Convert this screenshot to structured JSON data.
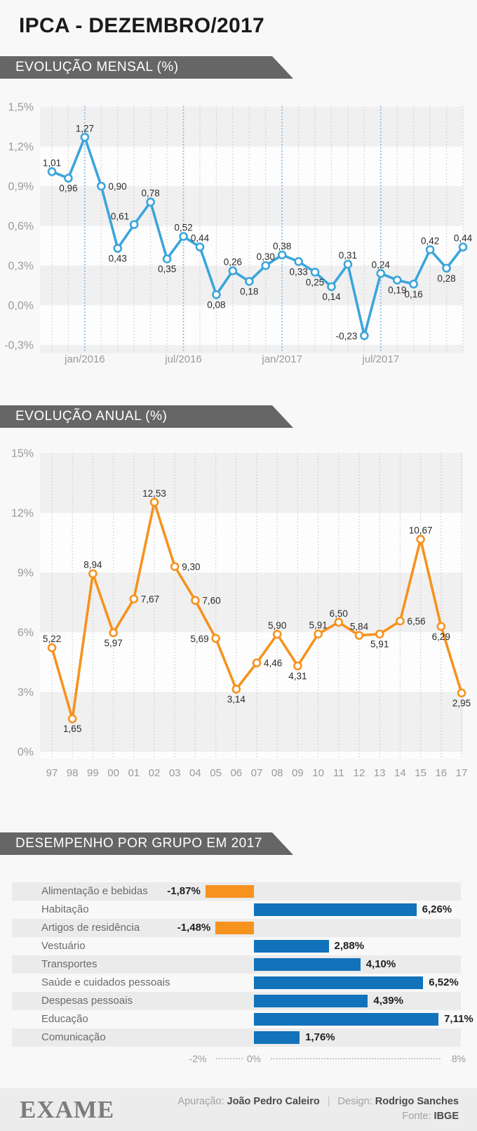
{
  "page": {
    "title": "IPCA - DEZEMBRO/2017",
    "background_color": "#f8f8f8",
    "banner_color": "#666666"
  },
  "chart_data": [
    {
      "id": "monthly-evolution",
      "type": "line",
      "title": "EVOLUÇÃO MENSAL (%)",
      "color": "#3BA5DB",
      "grid": "vertical-dotted",
      "ylim": [
        -0.3,
        1.5
      ],
      "yticks": [
        {
          "v": 1.5,
          "label": "1,5%"
        },
        {
          "v": 1.2,
          "label": "1,2%"
        },
        {
          "v": 0.9,
          "label": "0,9%"
        },
        {
          "v": 0.6,
          "label": "0,6%"
        },
        {
          "v": 0.3,
          "label": "0,3%"
        },
        {
          "v": 0.0,
          "label": "0,0%"
        },
        {
          "v": -0.3,
          "label": "-0,3%"
        }
      ],
      "xticks": [
        {
          "index": 2,
          "label": "jan/2016"
        },
        {
          "index": 8,
          "label": "jul/2016"
        },
        {
          "index": 14,
          "label": "jan/2017"
        },
        {
          "index": 20,
          "label": "jul/2017"
        }
      ],
      "highlight_columns": [
        2,
        8,
        14,
        20
      ],
      "points": [
        {
          "v": 1.01,
          "label": "1,01",
          "pos": "above"
        },
        {
          "v": 0.96,
          "label": "0,96",
          "pos": "below"
        },
        {
          "v": 1.27,
          "label": "1,27",
          "pos": "above"
        },
        {
          "v": 0.9,
          "label": "0,90",
          "pos": "right"
        },
        {
          "v": 0.43,
          "label": "0,43",
          "pos": "below"
        },
        {
          "v": 0.61,
          "label": "0,61",
          "pos": "upleft"
        },
        {
          "v": 0.78,
          "label": "0,78",
          "pos": "above"
        },
        {
          "v": 0.35,
          "label": "0,35",
          "pos": "below"
        },
        {
          "v": 0.52,
          "label": "0,52",
          "pos": "above"
        },
        {
          "v": 0.44,
          "label": "0,44",
          "pos": "above"
        },
        {
          "v": 0.08,
          "label": "0,08",
          "pos": "below"
        },
        {
          "v": 0.26,
          "label": "0,26",
          "pos": "above"
        },
        {
          "v": 0.18,
          "label": "0,18",
          "pos": "below"
        },
        {
          "v": 0.3,
          "label": "0,30",
          "pos": "above"
        },
        {
          "v": 0.38,
          "label": "0,38",
          "pos": "above"
        },
        {
          "v": 0.33,
          "label": "0,33",
          "pos": "below"
        },
        {
          "v": 0.25,
          "label": "0,25",
          "pos": "below"
        },
        {
          "v": 0.14,
          "label": "0,14",
          "pos": "below"
        },
        {
          "v": 0.31,
          "label": "0,31",
          "pos": "above"
        },
        {
          "v": -0.23,
          "label": "-0,23",
          "pos": "left"
        },
        {
          "v": 0.24,
          "label": "0,24",
          "pos": "above"
        },
        {
          "v": 0.19,
          "label": "0,19",
          "pos": "below"
        },
        {
          "v": 0.16,
          "label": "0,16",
          "pos": "below"
        },
        {
          "v": 0.42,
          "label": "0,42",
          "pos": "above"
        },
        {
          "v": 0.28,
          "label": "0,28",
          "pos": "below"
        },
        {
          "v": 0.44,
          "label": "0,44",
          "pos": "above"
        }
      ]
    },
    {
      "id": "annual-evolution",
      "type": "line",
      "title": "EVOLUÇÃO ANUAL (%)",
      "color": "#F6921E",
      "grid": "vertical-dotted",
      "ylim": [
        0,
        15
      ],
      "yticks": [
        {
          "v": 15,
          "label": "15%"
        },
        {
          "v": 12,
          "label": "12%"
        },
        {
          "v": 9,
          "label": "9%"
        },
        {
          "v": 6,
          "label": "6%"
        },
        {
          "v": 3,
          "label": "3%"
        },
        {
          "v": 0,
          "label": "0%"
        }
      ],
      "points": [
        {
          "x": "97",
          "v": 5.22,
          "label": "5,22",
          "pos": "above"
        },
        {
          "x": "98",
          "v": 1.65,
          "label": "1,65",
          "pos": "below"
        },
        {
          "x": "99",
          "v": 8.94,
          "label": "8,94",
          "pos": "above"
        },
        {
          "x": "00",
          "v": 5.97,
          "label": "5,97",
          "pos": "below"
        },
        {
          "x": "01",
          "v": 7.67,
          "label": "7,67",
          "pos": "right"
        },
        {
          "x": "02",
          "v": 12.53,
          "label": "12,53",
          "pos": "above"
        },
        {
          "x": "03",
          "v": 9.3,
          "label": "9,30",
          "pos": "right"
        },
        {
          "x": "04",
          "v": 7.6,
          "label": "7,60",
          "pos": "right"
        },
        {
          "x": "05",
          "v": 5.69,
          "label": "5,69",
          "pos": "left"
        },
        {
          "x": "06",
          "v": 3.14,
          "label": "3,14",
          "pos": "below"
        },
        {
          "x": "07",
          "v": 4.46,
          "label": "4,46",
          "pos": "right"
        },
        {
          "x": "08",
          "v": 5.9,
          "label": "5,90",
          "pos": "above"
        },
        {
          "x": "09",
          "v": 4.31,
          "label": "4,31",
          "pos": "below"
        },
        {
          "x": "10",
          "v": 5.91,
          "label": "5,91",
          "pos": "above"
        },
        {
          "x": "11",
          "v": 6.5,
          "label": "6,50",
          "pos": "above"
        },
        {
          "x": "12",
          "v": 5.84,
          "label": "5,84",
          "pos": "above"
        },
        {
          "x": "13",
          "v": 5.91,
          "label": "5,91",
          "pos": "below"
        },
        {
          "x": "14",
          "v": 6.56,
          "label": "6,56",
          "pos": "right"
        },
        {
          "x": "15",
          "v": 10.67,
          "label": "10,67",
          "pos": "above"
        },
        {
          "x": "16",
          "v": 6.29,
          "label": "6,29",
          "pos": "below"
        },
        {
          "x": "17",
          "v": 2.95,
          "label": "2,95",
          "pos": "below"
        }
      ]
    },
    {
      "id": "groups-2017",
      "type": "bar",
      "orientation": "horizontal",
      "title": "DESEMPENHO POR GRUPO EM 2017",
      "positive_color": "#1272BA",
      "negative_color": "#F6921E",
      "xlim": [
        -2,
        8
      ],
      "axis": {
        "min_label": "-2%",
        "zero_label": "0%",
        "max_label": "8%"
      },
      "bars": [
        {
          "category": "Alimentação e bebidas",
          "v": -1.87,
          "label": "-1,87%"
        },
        {
          "category": "Habitação",
          "v": 6.26,
          "label": "6,26%"
        },
        {
          "category": "Artigos de residência",
          "v": -1.48,
          "label": "-1,48%"
        },
        {
          "category": "Vestuário",
          "v": 2.88,
          "label": "2,88%"
        },
        {
          "category": "Transportes",
          "v": 4.1,
          "label": "4,10%"
        },
        {
          "category": "Saúde e cuidados pessoais",
          "v": 6.52,
          "label": "6,52%"
        },
        {
          "category": "Despesas pessoais",
          "v": 4.39,
          "label": "4,39%"
        },
        {
          "category": "Educação",
          "v": 7.11,
          "label": "7,11%"
        },
        {
          "category": "Comunicação",
          "v": 1.76,
          "label": "1,76%"
        }
      ]
    }
  ],
  "footer": {
    "logo": "EXAME",
    "apuracao_label": "Apuração:",
    "apuracao_value": "João Pedro Caleiro",
    "separator": "|",
    "design_label": "Design:",
    "design_value": "Rodrigo Sanches",
    "fonte_label": "Fonte:",
    "fonte_value": "IBGE"
  }
}
